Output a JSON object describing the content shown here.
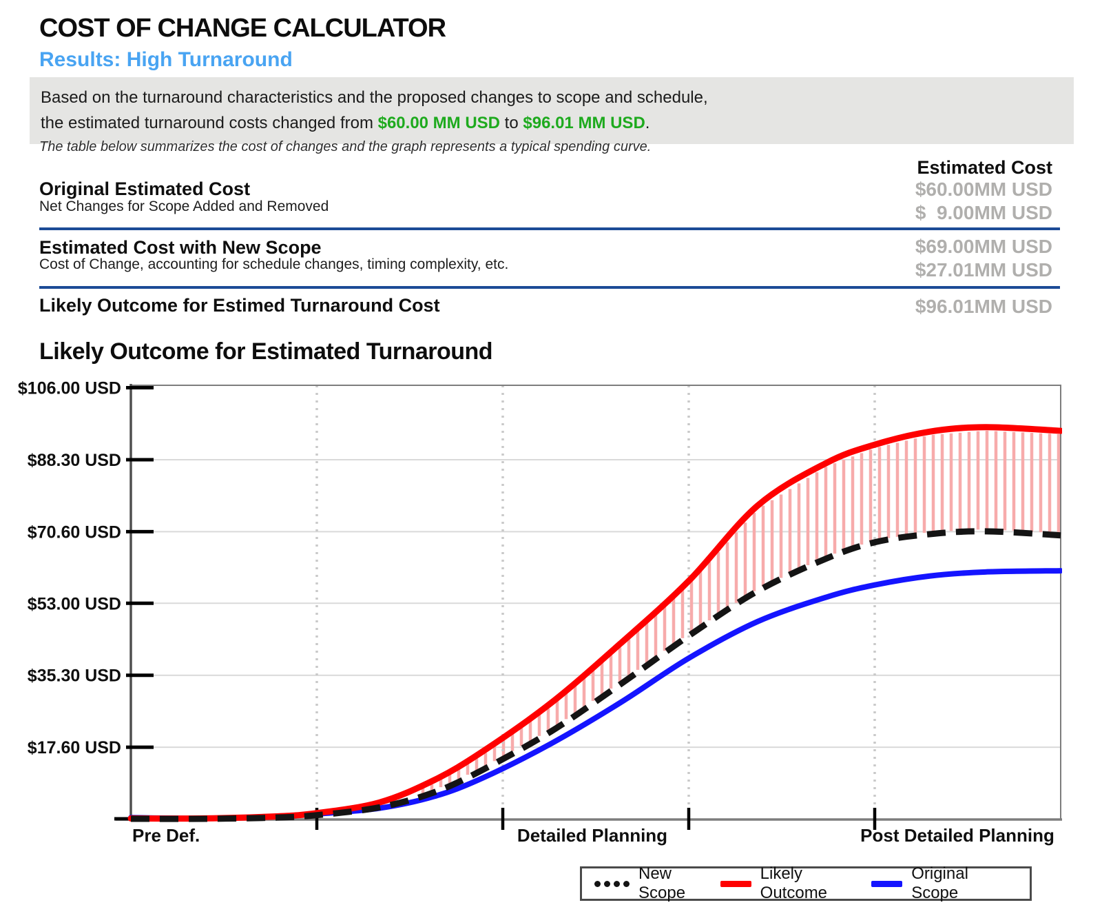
{
  "header": {
    "title": "COST OF CHANGE CALCULATOR",
    "subtitle": "Results: High Turnaround",
    "summary_line1": "Based on the turnaround characteristics and the proposed changes to scope and schedule,",
    "summary_prefix": "the estimated turnaround costs changed from ",
    "summary_from": "$60.00 MM USD",
    "summary_mid": " to ",
    "summary_to": "$96.01 MM USD",
    "summary_suffix": "."
  },
  "note": "The table below summarizes the cost of changes and the graph represents a typical spending curve.",
  "table": {
    "column_header": "Estimated Cost",
    "rows": [
      {
        "title": "Original Estimated Cost",
        "subtitle": "Net Changes for Scope Added and Removed",
        "value1": "$60.00MM USD",
        "value2": "$  9.00MM USD"
      },
      {
        "title": "Estimated Cost with New Scope",
        "subtitle": "Cost of Change, accounting for schedule changes, timing complexity, etc.",
        "value1": "$69.00MM USD",
        "value2": "$27.01MM USD"
      },
      {
        "title": "Likely Outcome for Estimed Turnaround Cost",
        "value1": "$96.01MM USD"
      }
    ]
  },
  "chart_title": "Likely Outcome for Estimated Turnaround",
  "chart_data": {
    "type": "line",
    "title": "Likely Outcome for Estimated Turnaround",
    "x": [
      0.0,
      0.08,
      0.156,
      0.2,
      0.267,
      0.326,
      0.378,
      0.452,
      0.526,
      0.6,
      0.674,
      0.748,
      0.8,
      0.859,
      0.919,
      1.0
    ],
    "series": [
      {
        "name": "New Scope",
        "color": "#141414",
        "style": "dashed",
        "values": [
          0.0,
          0.0,
          0.3,
          0.9,
          2.8,
          6.5,
          12.0,
          21.5,
          33.0,
          45.0,
          56.0,
          64.0,
          68.0,
          70.0,
          70.7,
          69.7
        ]
      },
      {
        "name": "Likely Outcome",
        "color": "#fe0000",
        "style": "solid",
        "values": [
          0.1,
          0.1,
          0.6,
          1.4,
          4.0,
          9.5,
          16.5,
          28.5,
          43.0,
          58.5,
          77.0,
          87.5,
          92.0,
          95.2,
          96.3,
          95.4
        ]
      },
      {
        "name": "Original Scope",
        "color": "#1414ff",
        "style": "solid",
        "values": [
          0.3,
          0.1,
          0.6,
          1.2,
          2.6,
          5.5,
          10.0,
          18.5,
          28.5,
          39.5,
          48.5,
          54.5,
          57.5,
          59.7,
          60.7,
          61.0
        ]
      }
    ],
    "y_ticks": [
      {
        "label": "$106.00 USD",
        "value": 106.0
      },
      {
        "label": "$88.30 USD",
        "value": 88.3
      },
      {
        "label": "$70.60 USD",
        "value": 70.6
      },
      {
        "label": "$53.00 USD",
        "value": 53.0
      },
      {
        "label": "$35.30 USD",
        "value": 35.3
      },
      {
        "label": "$17.60 USD",
        "value": 17.6
      }
    ],
    "ylim": [
      0,
      106.6
    ],
    "x_tick_positions": [
      0.2,
      0.4,
      0.6,
      0.8
    ],
    "x_stage_labels": [
      "Pre Def.",
      "Detailed Planning",
      "Post Detailed Planning"
    ],
    "grid": {
      "h_color": "#d9d9d9",
      "v_color": "#c9c9c9",
      "v_style": "dotted"
    },
    "hatch": {
      "between": [
        "Likely Outcome",
        "New Scope"
      ],
      "color": "#f7abab"
    },
    "legend_position": "bottom-right"
  },
  "colors": {
    "accent_blue": "#49a4f2",
    "value_green": "#1eaa1e",
    "divider_navy": "#1c4b96",
    "muted_value": "#b0afad",
    "infobox_bg": "#e5e5e3"
  }
}
